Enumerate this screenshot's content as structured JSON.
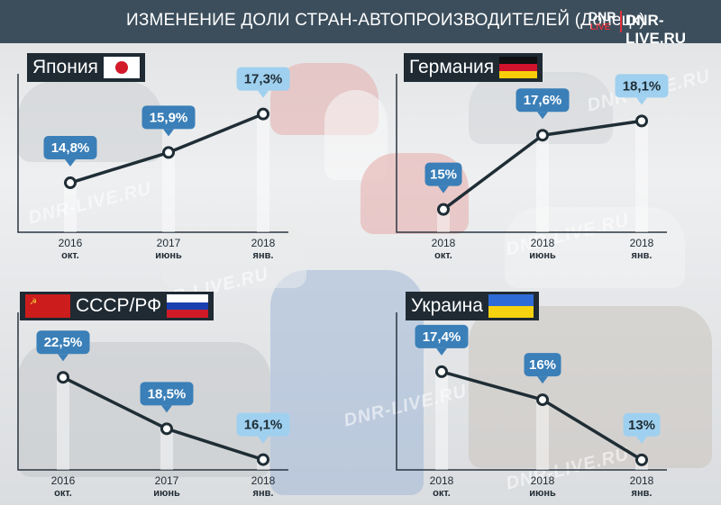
{
  "header": {
    "title": "ИЗМЕНЕНИЕ ДОЛИ СТРАН-АВТОПРОИЗВОДИТЕЛЕЙ (Донецк)",
    "site": "DNR-LIVE.RU"
  },
  "colors": {
    "header_bg": "#3c4e5c",
    "label_bg": "#1f2a33",
    "line": "#1f2d35",
    "bubble": "#3a7fb8",
    "bubble_light": "#9fd0ef"
  },
  "chart_data": [
    {
      "type": "line",
      "title": "Япония",
      "x": [
        "2016 окт.",
        "2017 июнь",
        "2018 янв."
      ],
      "x_year": [
        "2016",
        "2017",
        "2018"
      ],
      "x_month": [
        "окт.",
        "июнь",
        "янв."
      ],
      "values": [
        14.8,
        15.9,
        17.3
      ],
      "data_labels": [
        "14,8%",
        "15,9%",
        "17,3%"
      ],
      "ylim": [
        13,
        18.5
      ],
      "grid": false
    },
    {
      "type": "line",
      "title": "Германия",
      "x": [
        "2018 окт.",
        "2018 июнь",
        "2018 янв."
      ],
      "x_year": [
        "2018",
        "2018",
        "2018"
      ],
      "x_month": [
        "окт.",
        "июнь",
        "янв."
      ],
      "values": [
        15,
        17.6,
        18.1
      ],
      "data_labels": [
        "15%",
        "17,6%",
        "18,1%"
      ],
      "ylim": [
        14.2,
        19.5
      ],
      "grid": false
    },
    {
      "type": "line",
      "title": "СССР/РФ",
      "x": [
        "2016 окт.",
        "2017 июнь",
        "2018 янв."
      ],
      "x_year": [
        "2016",
        "2017",
        "2018"
      ],
      "x_month": [
        "окт.",
        "июнь",
        "янв."
      ],
      "values": [
        22.5,
        18.5,
        16.1
      ],
      "data_labels": [
        "22,5%",
        "18,5%",
        "16,1%"
      ],
      "ylim": [
        15.3,
        27
      ],
      "grid": false
    },
    {
      "type": "line",
      "title": "Украина",
      "x": [
        "2018 окт.",
        "2018 июнь",
        "2018 янв."
      ],
      "x_year": [
        "2018",
        "2018",
        "2018"
      ],
      "x_month": [
        "окт.",
        "июнь",
        "янв."
      ],
      "values": [
        17.4,
        16,
        13
      ],
      "data_labels": [
        "17,4%",
        "16%",
        "13%"
      ],
      "ylim": [
        12.5,
        20
      ],
      "grid": false
    }
  ]
}
